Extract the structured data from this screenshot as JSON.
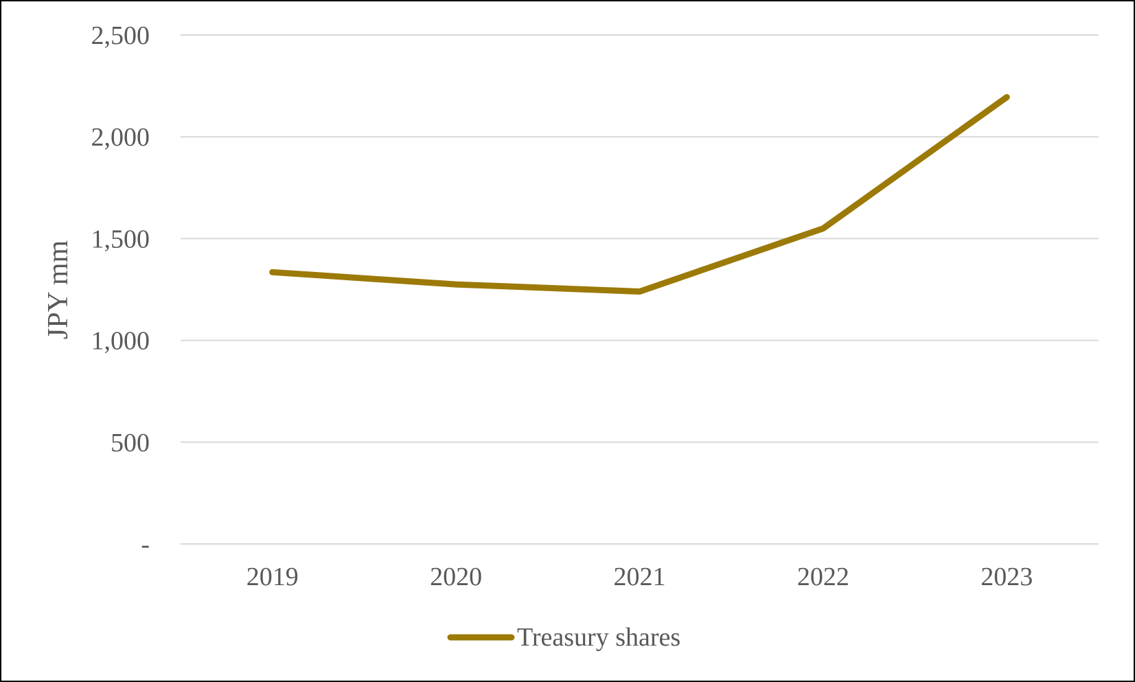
{
  "chart_data": {
    "type": "line",
    "categories": [
      "2019",
      "2020",
      "2021",
      "2022",
      "2023"
    ],
    "series": [
      {
        "name": "Treasury shares",
        "values": [
          1335,
          1275,
          1240,
          1550,
          2195
        ],
        "color": "#9C7A08"
      }
    ],
    "ylabel": "JPY mm",
    "xlabel": "",
    "ylim": [
      0,
      2500
    ],
    "yticks": [
      0,
      500,
      1000,
      1500,
      2000,
      2500
    ],
    "ytick_labels": [
      "-",
      "500",
      "1,000",
      "1,500",
      "2,000",
      "2,500"
    ],
    "grid": true,
    "grid_color": "#D9D9D9",
    "legend_position": "bottom"
  }
}
